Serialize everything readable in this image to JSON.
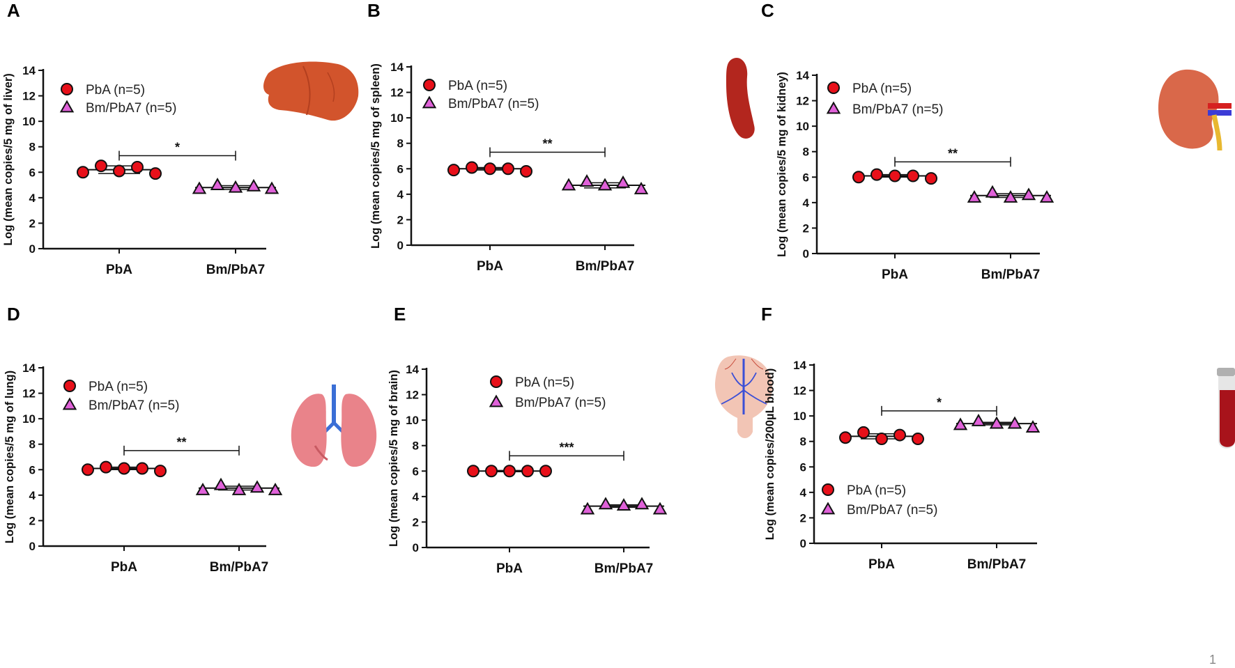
{
  "figure": {
    "page_number": "1",
    "colors": {
      "pba": "#e8101a",
      "bm": "#e061d9",
      "axis": "#111111",
      "liver": "#d2542c",
      "spleen": "#b3261e",
      "kidney": "#d9684a",
      "lung": "#e9838a",
      "brain": "#f2c5b5",
      "blood": "#a8131b"
    }
  },
  "chart_data": [
    {
      "panel": "A",
      "type": "scatter",
      "organ": "liver",
      "ylabel": "Log (mean copies/5 mg of liver)",
      "ylim": [
        0,
        14
      ],
      "yticks": [
        "0",
        "2",
        "4",
        "6",
        "8",
        "10",
        "12",
        "14"
      ],
      "categories": [
        "PbA",
        "Bm/PbA7"
      ],
      "legend_position": "top-left",
      "series": [
        {
          "name": "PbA (n=5)",
          "marker": "circle",
          "values": [
            6.0,
            6.5,
            6.1,
            6.4,
            5.9
          ],
          "mean": 6.2,
          "error": 0.3
        },
        {
          "name": "Bm/PbA7 (n=5)",
          "marker": "triangle",
          "values": [
            4.7,
            5.0,
            4.8,
            4.9,
            4.7
          ],
          "mean": 4.8,
          "error": 0.15
        }
      ],
      "significance": "*",
      "sig_y": 7.3
    },
    {
      "panel": "B",
      "type": "scatter",
      "organ": "spleen",
      "ylabel": "Log (mean copies/5 mg of spleen)",
      "ylim": [
        0,
        14
      ],
      "yticks": [
        "0",
        "2",
        "4",
        "6",
        "8",
        "10",
        "12",
        "14"
      ],
      "categories": [
        "PbA",
        "Bm/PbA7"
      ],
      "legend_position": "top-left",
      "series": [
        {
          "name": "PbA (n=5)",
          "marker": "circle",
          "values": [
            5.9,
            6.1,
            6.0,
            6.0,
            5.8
          ],
          "mean": 6.0,
          "error": 0.1
        },
        {
          "name": "Bm/PbA7 (n=5)",
          "marker": "triangle",
          "values": [
            4.7,
            5.0,
            4.7,
            4.9,
            4.4
          ],
          "mean": 4.7,
          "error": 0.2
        }
      ],
      "significance": "**",
      "sig_y": 7.3
    },
    {
      "panel": "C",
      "type": "scatter",
      "organ": "kidney",
      "ylabel": "Log (mean copies/5 mg of kidney)",
      "ylim": [
        0,
        14
      ],
      "yticks": [
        "0",
        "2",
        "4",
        "6",
        "8",
        "10",
        "12",
        "14"
      ],
      "categories": [
        "PbA",
        "Bm/PbA7"
      ],
      "legend_position": "top-left",
      "series": [
        {
          "name": "PbA (n=5)",
          "marker": "circle",
          "values": [
            6.0,
            6.2,
            6.1,
            6.1,
            5.9
          ],
          "mean": 6.1,
          "error": 0.1
        },
        {
          "name": "Bm/PbA7 (n=5)",
          "marker": "triangle",
          "values": [
            4.4,
            4.8,
            4.4,
            4.6,
            4.4
          ],
          "mean": 4.55,
          "error": 0.15
        }
      ],
      "significance": "**",
      "sig_y": 7.2
    },
    {
      "panel": "D",
      "type": "scatter",
      "organ": "lung",
      "ylabel": "Log (mean copies/5 mg of lung)",
      "ylim": [
        0,
        14
      ],
      "yticks": [
        "0",
        "2",
        "4",
        "6",
        "8",
        "10",
        "12",
        "14"
      ],
      "categories": [
        "PbA",
        "Bm/PbA7"
      ],
      "legend_position": "top-left",
      "series": [
        {
          "name": "PbA (n=5)",
          "marker": "circle",
          "values": [
            6.0,
            6.2,
            6.1,
            6.1,
            5.9
          ],
          "mean": 6.1,
          "error": 0.1
        },
        {
          "name": "Bm/PbA7 (n=5)",
          "marker": "triangle",
          "values": [
            4.4,
            4.8,
            4.4,
            4.6,
            4.4
          ],
          "mean": 4.55,
          "error": 0.15
        }
      ],
      "significance": "**",
      "sig_y": 7.5
    },
    {
      "panel": "E",
      "type": "scatter",
      "organ": "brain",
      "ylabel": "Log (mean copies/5 mg of brain)",
      "ylim": [
        0,
        14
      ],
      "yticks": [
        "0",
        "2",
        "4",
        "6",
        "8",
        "10",
        "12",
        "14"
      ],
      "categories": [
        "PbA",
        "Bm/PbA7"
      ],
      "legend_position": "top-left",
      "series": [
        {
          "name": "PbA (n=5)",
          "marker": "circle",
          "values": [
            6.0,
            6.0,
            6.0,
            6.0,
            6.0
          ],
          "mean": 6.0,
          "error": 0.05
        },
        {
          "name": "Bm/PbA7 (n=5)",
          "marker": "triangle",
          "values": [
            3.0,
            3.4,
            3.3,
            3.4,
            3.0
          ],
          "mean": 3.25,
          "error": 0.1
        }
      ],
      "significance": "***",
      "sig_y": 7.2
    },
    {
      "panel": "F",
      "type": "scatter",
      "organ": "blood",
      "ylabel": "Log (mean copies/200µL blood)",
      "ylim": [
        0,
        14
      ],
      "yticks": [
        "0",
        "2",
        "4",
        "6",
        "8",
        "10",
        "12",
        "14"
      ],
      "categories": [
        "PbA",
        "Bm/PbA7"
      ],
      "legend_position": "bottom-left",
      "series": [
        {
          "name": "PbA (n=5)",
          "marker": "circle",
          "values": [
            8.3,
            8.7,
            8.2,
            8.5,
            8.2
          ],
          "mean": 8.4,
          "error": 0.2
        },
        {
          "name": "Bm/PbA7 (n=5)",
          "marker": "triangle",
          "values": [
            9.3,
            9.6,
            9.4,
            9.4,
            9.1
          ],
          "mean": 9.4,
          "error": 0.1
        }
      ],
      "significance": "*",
      "sig_y": 10.4
    }
  ]
}
